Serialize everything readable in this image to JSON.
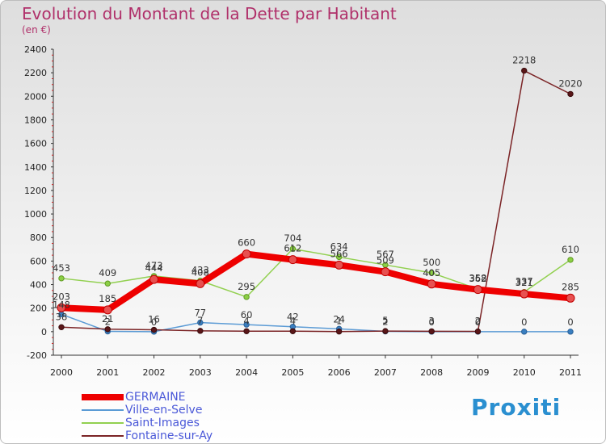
{
  "chart_data": {
    "type": "line",
    "title": "Evolution du Montant de la Dette par Habitant",
    "subtitle": "(en €)",
    "categories": [
      "2000",
      "2001",
      "2002",
      "2003",
      "2004",
      "2005",
      "2006",
      "2007",
      "2008",
      "2009",
      "2010",
      "2011"
    ],
    "ylim": [
      -200,
      2400
    ],
    "yticks": [
      -200,
      0,
      200,
      400,
      600,
      800,
      1000,
      1200,
      1400,
      1600,
      1800,
      2000,
      2200,
      2400
    ],
    "grid": false,
    "legend_position": "bottom-left",
    "series": [
      {
        "name": "GERMAINE",
        "color": "#ee0000",
        "values": [
          203,
          185,
          444,
          408,
          660,
          612,
          566,
          509,
          405,
          358,
          321,
          285
        ]
      },
      {
        "name": "Ville-en-Selve",
        "color": "#5b9bd5",
        "values": [
          148,
          2,
          0,
          77,
          60,
          42,
          24,
          2,
          0,
          0,
          0,
          0
        ]
      },
      {
        "name": "Saint-Images",
        "color": "#92d050",
        "values": [
          453,
          409,
          473,
          433,
          295,
          704,
          634,
          567,
          500,
          362,
          337,
          610
        ]
      },
      {
        "name": "Fontaine-sur-Ay",
        "color": "#7b2426",
        "values": [
          38,
          21,
          16,
          7,
          4,
          4,
          1,
          5,
          3,
          2,
          2218,
          2020
        ]
      }
    ]
  },
  "brand": "Proxiti"
}
